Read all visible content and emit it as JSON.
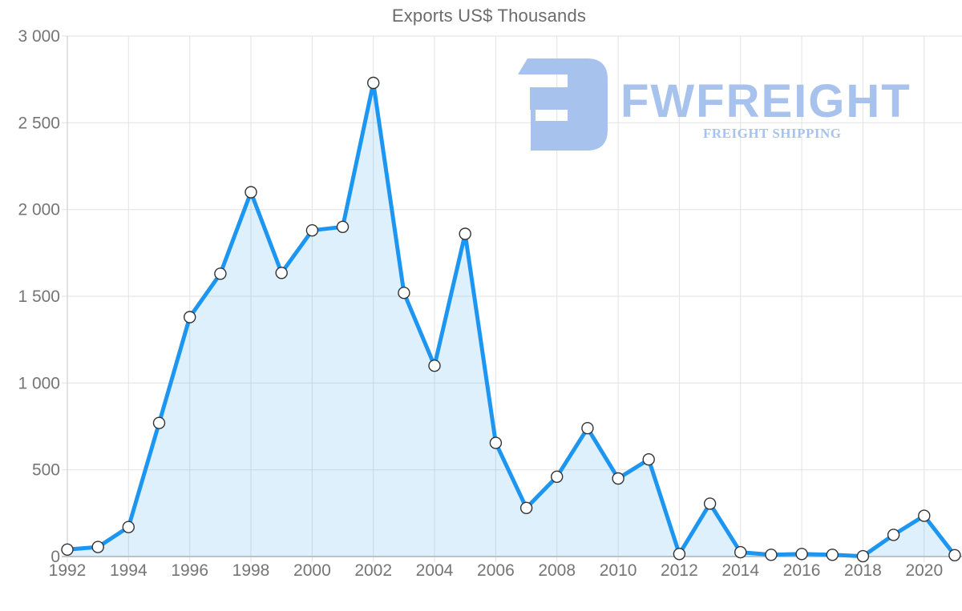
{
  "watermark": {
    "name": "FWFREIGHT",
    "tagline": "FREIGHT SHIPPING"
  },
  "chart_data": {
    "type": "area",
    "title": "Exports US$ Thousands",
    "x": [
      1992,
      1993,
      1994,
      1995,
      1996,
      1997,
      1998,
      1999,
      2000,
      2001,
      2002,
      2003,
      2004,
      2005,
      2006,
      2007,
      2008,
      2009,
      2010,
      2011,
      2012,
      2013,
      2014,
      2015,
      2016,
      2017,
      2018,
      2019,
      2020,
      2021
    ],
    "series": [
      {
        "name": "Exports US$ Thousands",
        "values": [
          40,
          55,
          170,
          770,
          1380,
          1630,
          2100,
          1635,
          1880,
          1900,
          2730,
          1520,
          1100,
          1860,
          655,
          280,
          460,
          740,
          450,
          560,
          15,
          305,
          25,
          10,
          15,
          10,
          2,
          125,
          235,
          8
        ]
      }
    ],
    "xlabel": "",
    "ylabel": "",
    "ylim": [
      0,
      3000
    ],
    "y_tick_values": [
      0,
      500,
      1000,
      1500,
      2000,
      2500,
      3000
    ],
    "y_tick_labels": [
      "0",
      "500",
      "1 000",
      "1 500",
      "2 000",
      "2 500",
      "3 000"
    ],
    "x_tick_labels": [
      "1992",
      "1994",
      "1996",
      "1998",
      "2000",
      "2002",
      "2004",
      "2006",
      "2008",
      "2010",
      "2012",
      "2014",
      "2016",
      "2018",
      "2020"
    ],
    "grid": "on",
    "legend": "none",
    "marker": "circle",
    "colors": {
      "line": "#1d96f2",
      "area_fill": "rgba(30,150,242,0.14)",
      "marker_fill": "#ffffff",
      "marker_stroke": "#333333",
      "grid": "#e2e2e2",
      "axis": "#c6c6c6",
      "y_axis": "#cfcfcf",
      "tick_text": "#757575",
      "title_text": "#6b6b6b",
      "watermark": "#a7c3ed"
    }
  }
}
